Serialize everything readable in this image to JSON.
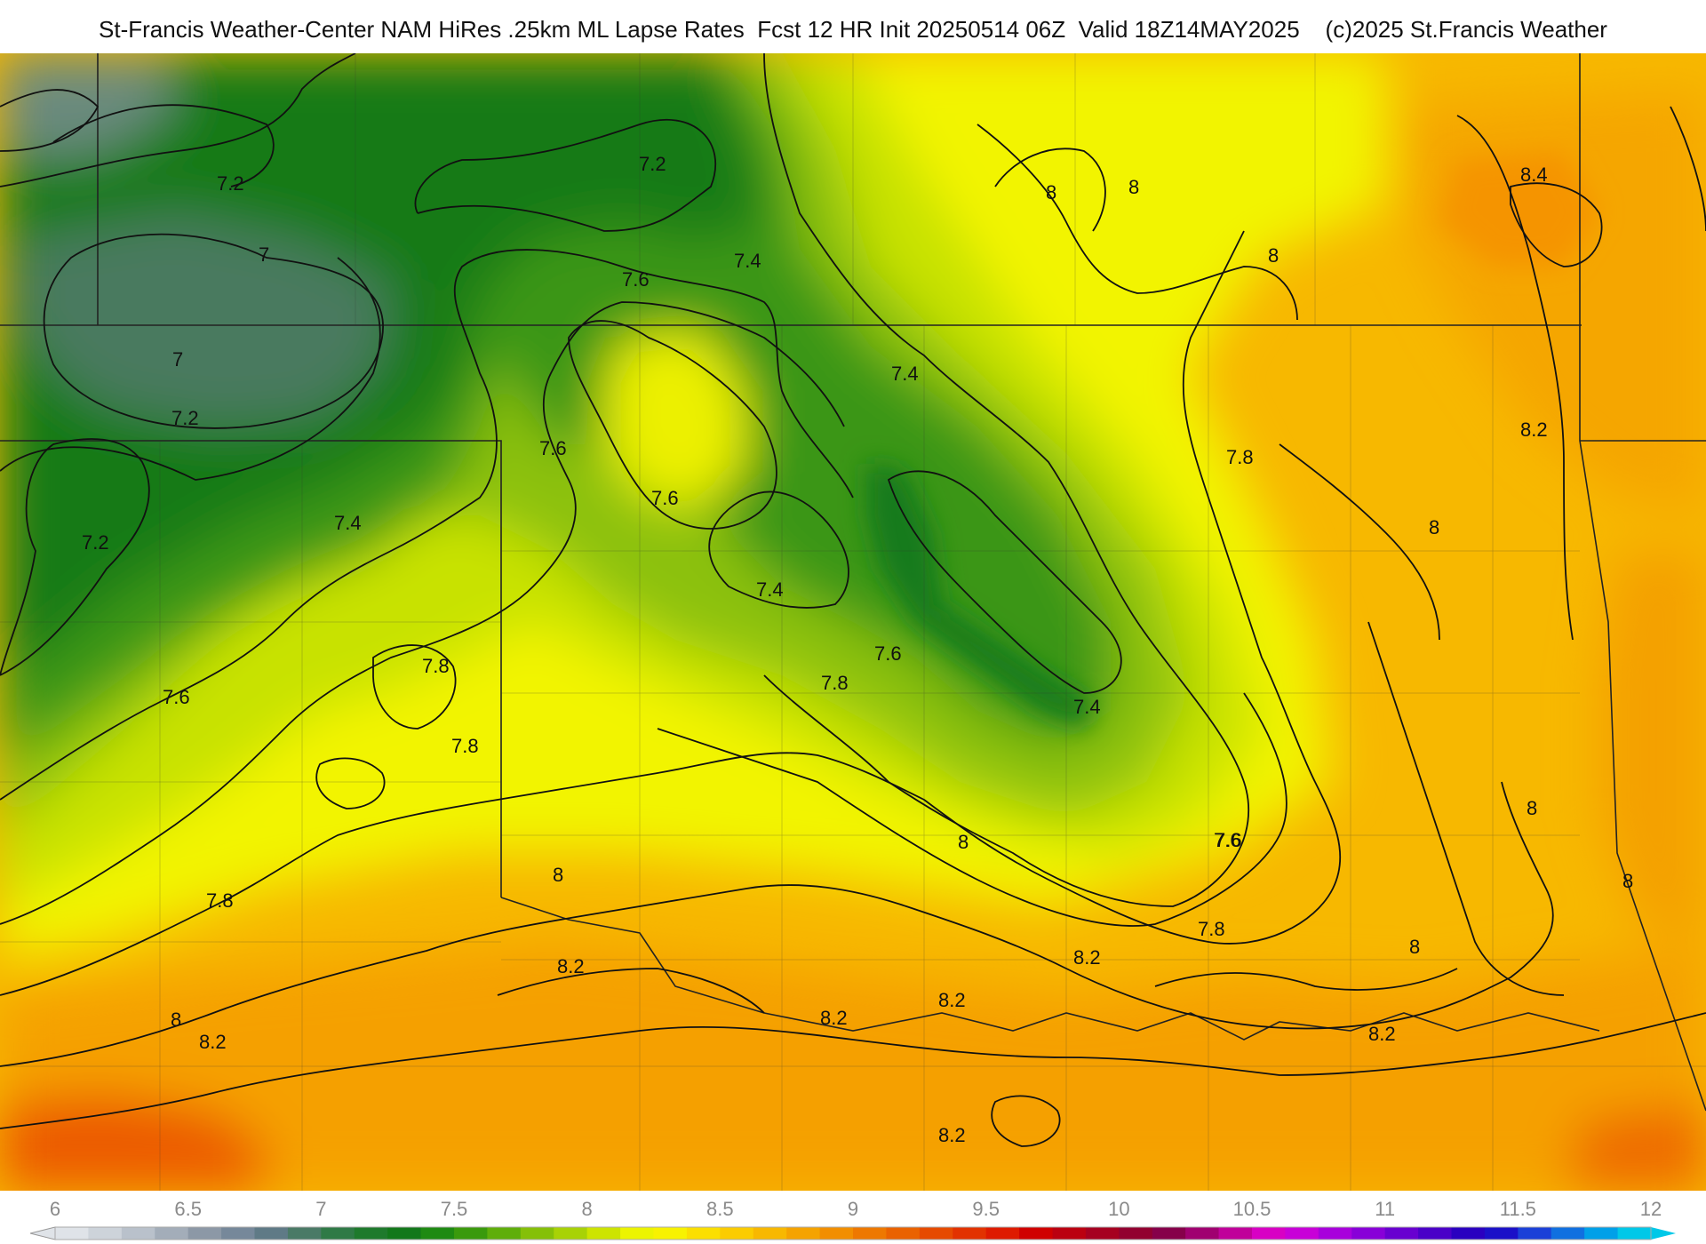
{
  "title": "St-Francis Weather-Center NAM HiRes .25km ML Lapse Rates  Fcst 12 HR Init 20250514 06Z  Valid 18Z14MAY2025    (c)2025 St.Francis Weather",
  "legend": {
    "ticks": [
      "6",
      "6.5",
      "7",
      "7.5",
      "8",
      "8.5",
      "9",
      "9.5",
      "10",
      "10.5",
      "11",
      "11.5",
      "12"
    ],
    "colors": [
      "#dfe3e8",
      "#cdd3da",
      "#b9c1cb",
      "#a3adb9",
      "#8c98a6",
      "#76889a",
      "#5f7a86",
      "#4a7a66",
      "#2f7a46",
      "#1e7a2c",
      "#12781a",
      "#1e8a12",
      "#3a9a0c",
      "#5fae0a",
      "#85c008",
      "#a8d206",
      "#cde400",
      "#ecf400",
      "#f8f200",
      "#fbdf00",
      "#fbcc00",
      "#f8b800",
      "#f5a300",
      "#f28e00",
      "#ee7800",
      "#ea6200",
      "#e64a00",
      "#e23200",
      "#de1a00",
      "#d00000",
      "#bb0010",
      "#a60020",
      "#920030",
      "#86004a",
      "#a00070",
      "#c0009a",
      "#d800c4",
      "#c800d8",
      "#a800dc",
      "#8800d8",
      "#6800d0",
      "#4a00c8",
      "#2a00c0",
      "#1a10c8",
      "#1a40d8",
      "#1070e0",
      "#00a0e8",
      "#00c8e8"
    ]
  },
  "contour_labels": [
    {
      "text": "7.2",
      "value": 7.2
    },
    {
      "text": "7.2",
      "value": 7.2
    },
    {
      "text": "7",
      "value": 7.0
    },
    {
      "text": "7",
      "value": 7.0
    },
    {
      "text": "7.2",
      "value": 7.2
    },
    {
      "text": "7.2",
      "value": 7.2
    },
    {
      "text": "7.4",
      "value": 7.4
    },
    {
      "text": "7.6",
      "value": 7.6
    },
    {
      "text": "7.4",
      "value": 7.4
    },
    {
      "text": "7.6",
      "value": 7.6
    },
    {
      "text": "7.6",
      "value": 7.6
    },
    {
      "text": "7.6",
      "value": 7.6
    },
    {
      "text": "7.4",
      "value": 7.4
    },
    {
      "text": "7.4",
      "value": 7.4
    },
    {
      "text": "7.8",
      "value": 7.8
    },
    {
      "text": "7.8",
      "value": 7.8
    },
    {
      "text": "7.6",
      "value": 7.6
    },
    {
      "text": "7.8",
      "value": 7.8
    },
    {
      "text": "7.6",
      "value": 7.6
    },
    {
      "text": "7.4",
      "value": 7.4
    },
    {
      "text": "7.8",
      "value": 7.8
    },
    {
      "text": "8",
      "value": 8.0
    },
    {
      "text": "8",
      "value": 8.0
    },
    {
      "text": "8",
      "value": 8.0
    },
    {
      "text": "8",
      "value": 8.0
    },
    {
      "text": "8.4",
      "value": 8.4
    },
    {
      "text": "7.8",
      "value": 7.8
    },
    {
      "text": "8",
      "value": 8.0
    },
    {
      "text": "8.2",
      "value": 8.2
    },
    {
      "text": "7.6",
      "value": 7.6
    },
    {
      "text": "8",
      "value": 8.0
    },
    {
      "text": "8",
      "value": 8.0
    },
    {
      "text": "8",
      "value": 8.0
    },
    {
      "text": "8",
      "value": 8.0
    },
    {
      "text": "7.8",
      "value": 7.8
    },
    {
      "text": "8.2",
      "value": 8.2
    },
    {
      "text": "8.2",
      "value": 8.2
    },
    {
      "text": "8",
      "value": 8.0
    },
    {
      "text": "8.2",
      "value": 8.2
    },
    {
      "text": "8.2",
      "value": 8.2
    },
    {
      "text": "8.2",
      "value": 8.2
    },
    {
      "text": "8.2",
      "value": 8.2
    },
    {
      "text": "8.2",
      "value": 8.2
    }
  ]
}
